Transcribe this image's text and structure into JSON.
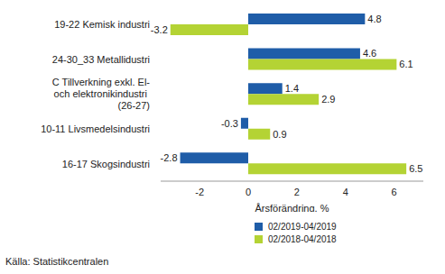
{
  "chart_data": {
    "type": "bar",
    "orientation": "horizontal",
    "categories": [
      "19-22 Kemisk industri",
      "24-30_33 Metallidustri",
      "C Tillverkning exkl. El- och elektronikindustri  (26-27)",
      "10-11 Livsmedelsindustri",
      "16-17 Skogsindustri"
    ],
    "series": [
      {
        "name": "02/2019-04/2019",
        "color": "#1f5da8",
        "values": [
          4.8,
          4.6,
          1.4,
          -0.3,
          -2.8
        ]
      },
      {
        "name": "02/2018-04/2018",
        "color": "#b4d334",
        "values": [
          -3.2,
          6.1,
          2.9,
          0.9,
          6.5
        ]
      }
    ],
    "xlabel": "Årsförändring, %",
    "xlim": [
      -3.6,
      7.2
    ],
    "xticks": [
      -2,
      0,
      2,
      4,
      6
    ],
    "grid": false,
    "data_labels": true,
    "source": "Källa: Statistikcentralen"
  }
}
